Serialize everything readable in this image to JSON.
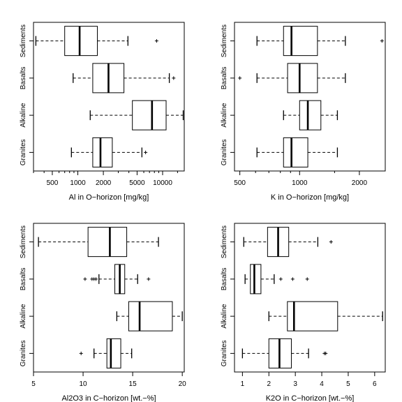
{
  "chart_data": [
    {
      "type": "boxplot",
      "orientation": "horizontal",
      "scale": "log",
      "xlabel": "Al in O−horizon [mg/kg]",
      "xlim": [
        300,
        18000
      ],
      "ticks": [
        500,
        1000,
        2000,
        5000,
        10000
      ],
      "tick_labels": [
        "500",
        "1000",
        "2000",
        "5000",
        "10000"
      ],
      "minor_ticks": [
        300,
        400,
        600,
        700,
        800,
        900,
        3000,
        4000,
        6000,
        7000,
        8000,
        9000,
        15000
      ],
      "categories": [
        "Granites",
        "Alkaline",
        "Basalts",
        "Sediments"
      ],
      "boxes": [
        {
          "name": "Granites",
          "whisker_low": 840,
          "q1": 1500,
          "median": 1850,
          "q3": 2550,
          "whisker_high": 5700,
          "outliers": [
            6300
          ]
        },
        {
          "name": "Alkaline",
          "whisker_low": 1400,
          "q1": 4400,
          "median": 7500,
          "q3": 11000,
          "whisker_high": 17500,
          "outliers": []
        },
        {
          "name": "Basalts",
          "whisker_low": 880,
          "q1": 1500,
          "median": 2300,
          "q3": 3500,
          "whisker_high": 12000,
          "outliers": [
            13500
          ]
        },
        {
          "name": "Sediments",
          "whisker_low": 320,
          "q1": 700,
          "median": 1050,
          "q3": 1700,
          "whisker_high": 3900,
          "outliers": [
            8500
          ]
        }
      ]
    },
    {
      "type": "boxplot",
      "orientation": "horizontal",
      "scale": "log",
      "xlabel": "K in O−horizon [mg/kg]",
      "xlim": [
        470,
        2700
      ],
      "ticks": [
        500,
        1000,
        2000
      ],
      "tick_labels": [
        "500",
        "1000",
        "2000"
      ],
      "minor_ticks": [
        600,
        700,
        800,
        900,
        1500
      ],
      "categories": [
        "Granites",
        "Alkaline",
        "Basalts",
        "Sediments"
      ],
      "boxes": [
        {
          "name": "Granites",
          "whisker_low": 610,
          "q1": 830,
          "median": 910,
          "q3": 1100,
          "whisker_high": 1550,
          "outliers": []
        },
        {
          "name": "Alkaline",
          "whisker_low": 830,
          "q1": 1000,
          "median": 1100,
          "q3": 1280,
          "whisker_high": 1550,
          "outliers": []
        },
        {
          "name": "Basalts",
          "whisker_low": 610,
          "q1": 870,
          "median": 1000,
          "q3": 1230,
          "whisker_high": 1700,
          "outliers": [
            500
          ]
        },
        {
          "name": "Sediments",
          "whisker_low": 610,
          "q1": 830,
          "median": 910,
          "q3": 1230,
          "whisker_high": 1700,
          "outliers": [
            2600
          ]
        }
      ]
    },
    {
      "type": "boxplot",
      "orientation": "horizontal",
      "scale": "linear",
      "xlabel": "Al2O3 in C−horizon [wt.−%]",
      "xlim": [
        5,
        20.2
      ],
      "ticks": [
        5,
        10,
        15,
        20
      ],
      "tick_labels": [
        "5",
        "10",
        "15",
        "20"
      ],
      "minor_ticks": [],
      "categories": [
        "Granites",
        "Alkaline",
        "Basalts",
        "Sediments"
      ],
      "boxes": [
        {
          "name": "Granites",
          "whisker_low": 11.1,
          "q1": 12.4,
          "median": 12.8,
          "q3": 13.8,
          "whisker_high": 14.9,
          "outliers": [
            9.8
          ]
        },
        {
          "name": "Alkaline",
          "whisker_low": 13.4,
          "q1": 14.6,
          "median": 15.7,
          "q3": 19.0,
          "whisker_high": 20.0,
          "outliers": []
        },
        {
          "name": "Basalts",
          "whisker_low": 11.6,
          "q1": 13.2,
          "median": 13.7,
          "q3": 14.2,
          "whisker_high": 15.5,
          "outliers": [
            10.2,
            10.9,
            11.1,
            11.3,
            16.6
          ]
        },
        {
          "name": "Sediments",
          "whisker_low": 5.5,
          "q1": 10.5,
          "median": 12.7,
          "q3": 14.4,
          "whisker_high": 17.6,
          "outliers": []
        }
      ]
    },
    {
      "type": "boxplot",
      "orientation": "horizontal",
      "scale": "linear",
      "xlabel": "K2O in C−horizon [wt.−%]",
      "xlim": [
        0.7,
        6.4
      ],
      "ticks": [
        1,
        2,
        3,
        4,
        5,
        6
      ],
      "tick_labels": [
        "1",
        "2",
        "3",
        "4",
        "5",
        "6"
      ],
      "minor_ticks": [],
      "categories": [
        "Granites",
        "Alkaline",
        "Basalts",
        "Sediments"
      ],
      "boxes": [
        {
          "name": "Granites",
          "whisker_low": 1.0,
          "q1": 2.0,
          "median": 2.4,
          "q3": 2.85,
          "whisker_high": 3.5,
          "outliers": [
            4.1,
            4.15
          ]
        },
        {
          "name": "Alkaline",
          "whisker_low": 2.0,
          "q1": 2.7,
          "median": 2.95,
          "q3": 4.6,
          "whisker_high": 6.3,
          "outliers": []
        },
        {
          "name": "Basalts",
          "whisker_low": 1.1,
          "q1": 1.3,
          "median": 1.45,
          "q3": 1.7,
          "whisker_high": 2.2,
          "outliers": [
            2.45,
            2.9,
            3.45
          ]
        },
        {
          "name": "Sediments",
          "whisker_low": 1.05,
          "q1": 1.95,
          "median": 2.35,
          "q3": 2.75,
          "whisker_high": 3.85,
          "outliers": [
            4.35
          ]
        }
      ]
    }
  ]
}
